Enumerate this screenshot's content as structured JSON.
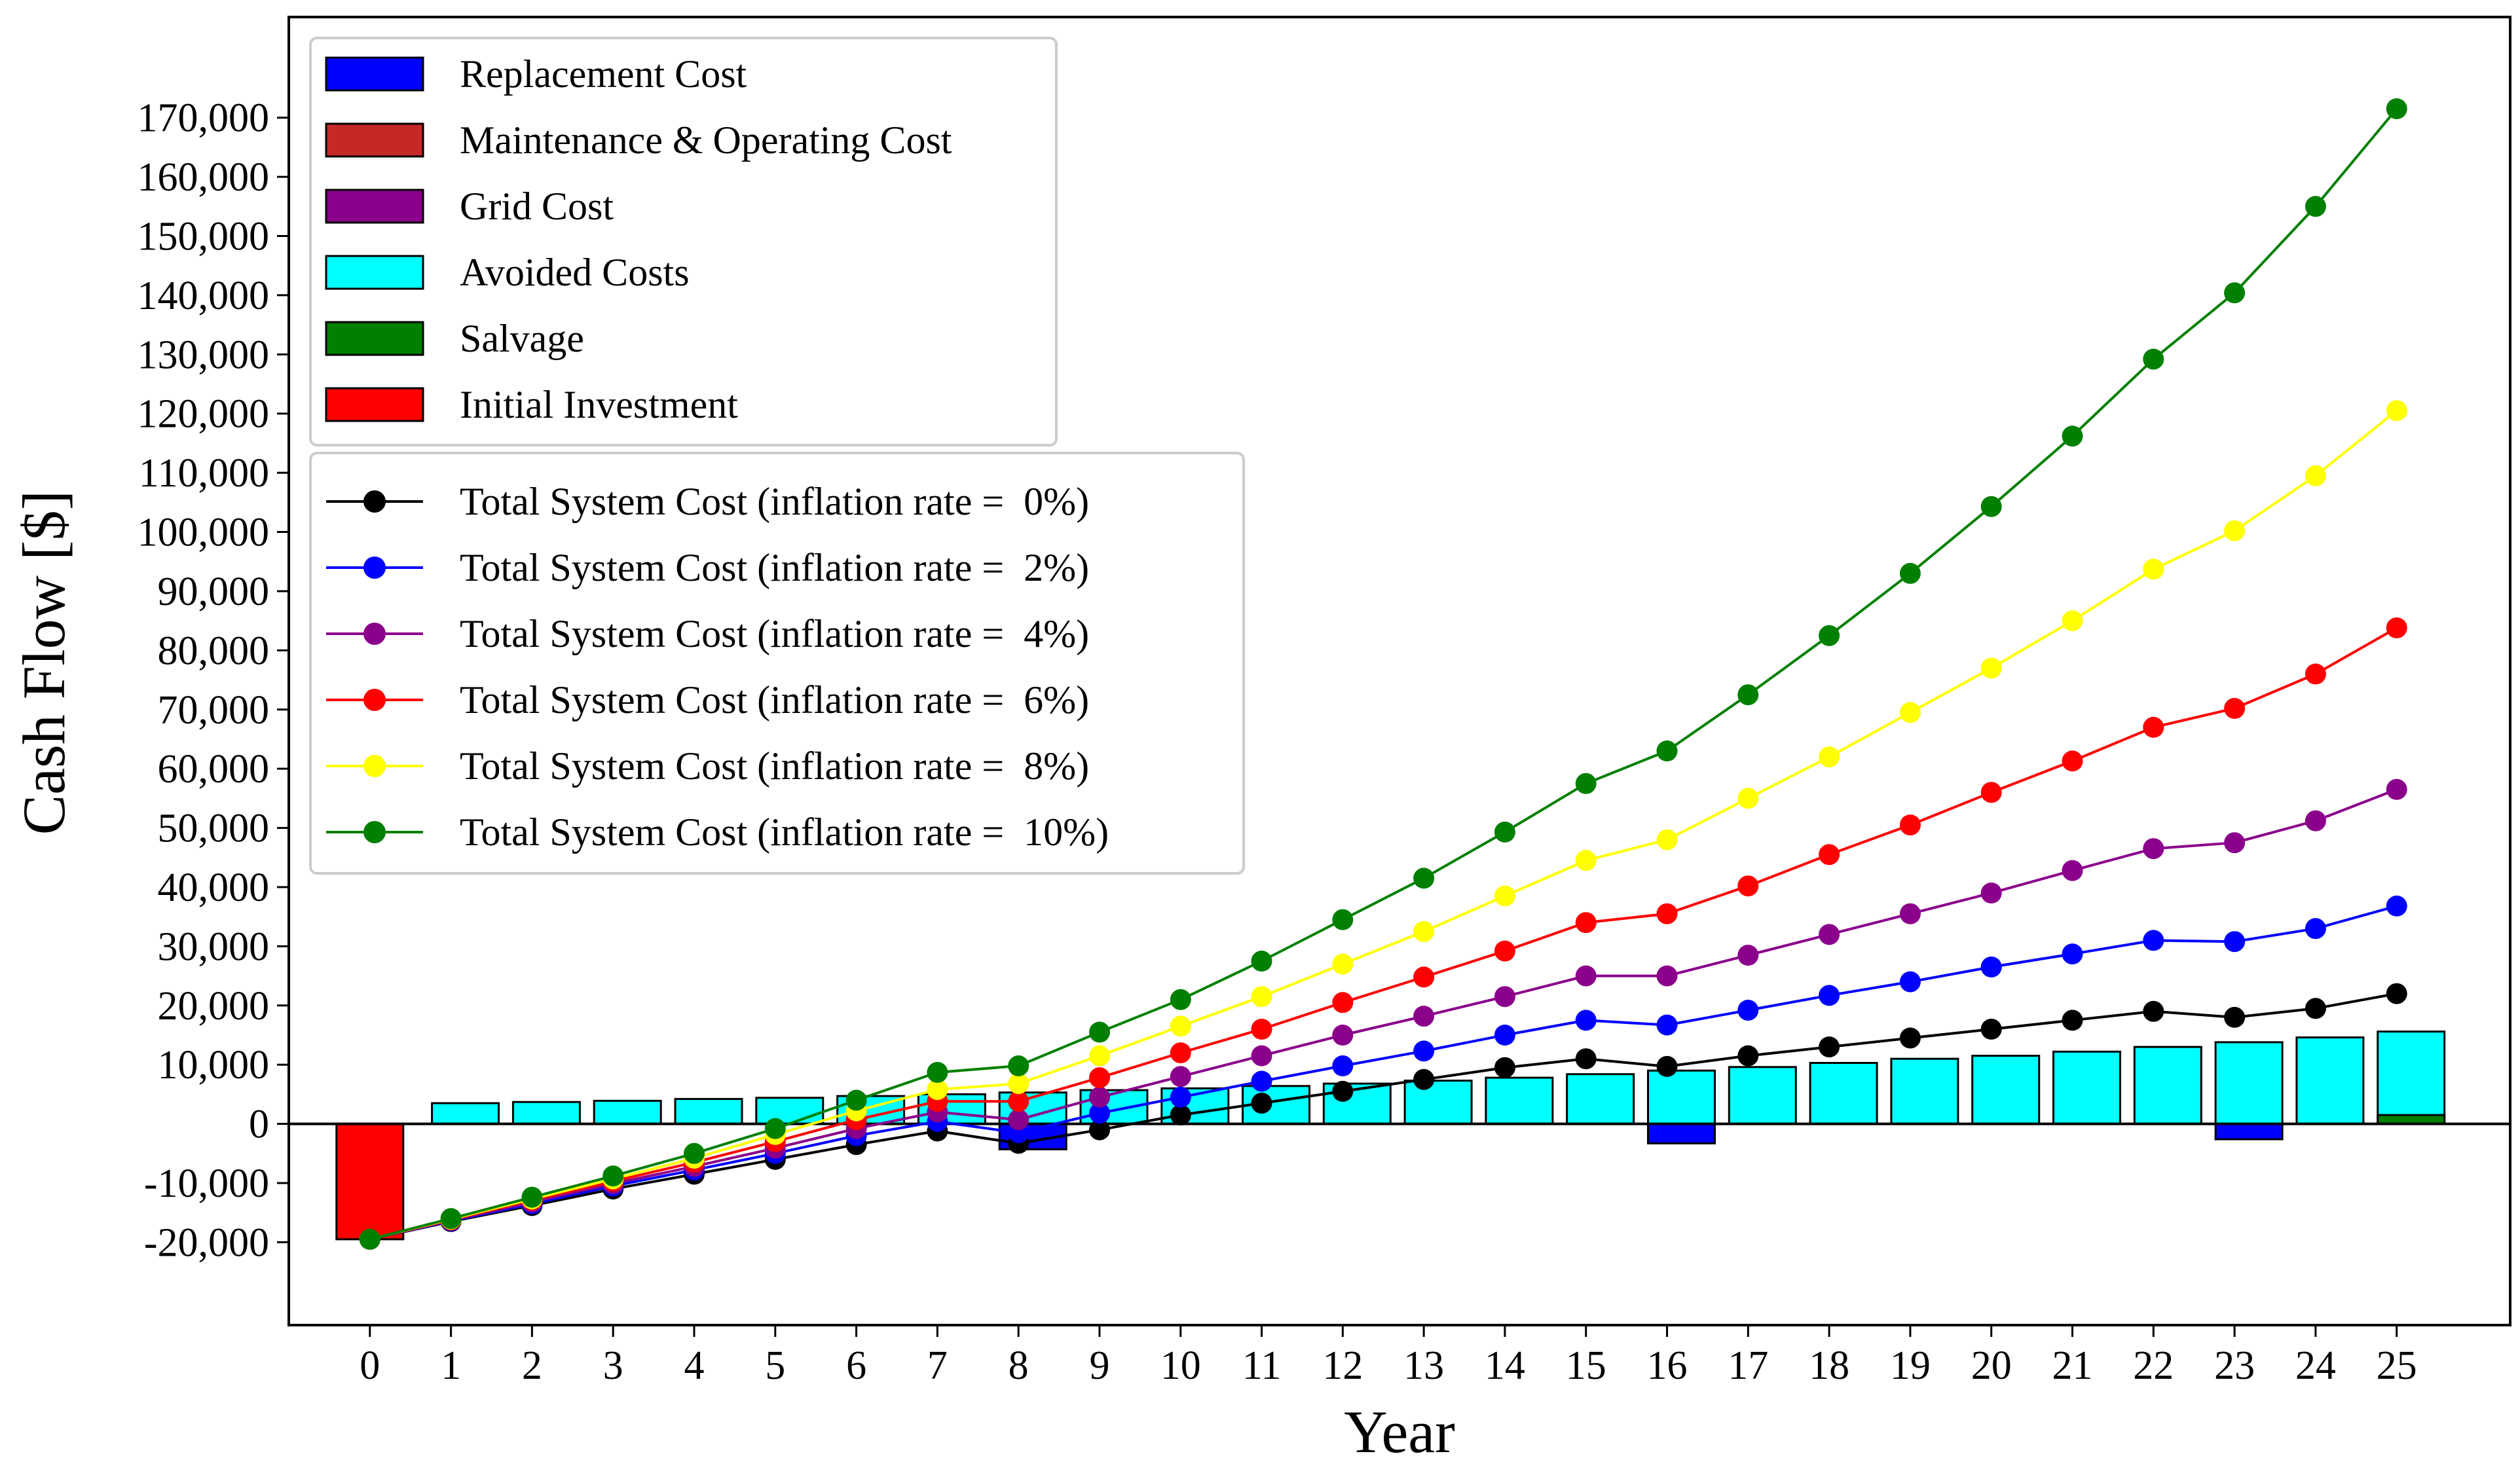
{
  "chart_data": {
    "type": "bar+line",
    "title": "",
    "xlabel": "Year",
    "ylabel": "Cash Flow [$]",
    "xlim": [
      -1,
      26.4
    ],
    "ylim": [
      -34000,
      187000
    ],
    "x": [
      0,
      1,
      2,
      3,
      4,
      5,
      6,
      7,
      8,
      9,
      10,
      11,
      12,
      13,
      14,
      15,
      16,
      17,
      18,
      19,
      20,
      21,
      22,
      23,
      24,
      25
    ],
    "x_tick_labels": [
      "0",
      "1",
      "2",
      "3",
      "4",
      "5",
      "6",
      "7",
      "8",
      "9",
      "10",
      "11",
      "12",
      "13",
      "14",
      "15",
      "16",
      "17",
      "18",
      "19",
      "20",
      "21",
      "22",
      "23",
      "24",
      "25"
    ],
    "y_ticks": [
      -20000,
      -10000,
      0,
      10000,
      20000,
      30000,
      40000,
      50000,
      60000,
      70000,
      80000,
      90000,
      100000,
      110000,
      120000,
      130000,
      140000,
      150000,
      160000,
      170000
    ],
    "y_tick_labels": [
      "-20,000",
      "-10,000",
      "0",
      "10,000",
      "20,000",
      "30,000",
      "40,000",
      "50,000",
      "60,000",
      "70,000",
      "80,000",
      "90,000",
      "100,000",
      "110,000",
      "120,000",
      "130,000",
      "140,000",
      "150,000",
      "160,000",
      "170,000"
    ],
    "bar_series": [
      {
        "name": "Replacement Cost",
        "color": "#0000ff",
        "values": [
          0,
          0,
          0,
          0,
          0,
          0,
          0,
          0,
          -4300,
          0,
          0,
          0,
          0,
          0,
          0,
          0,
          -3300,
          0,
          0,
          0,
          0,
          0,
          0,
          -2600,
          0,
          0
        ]
      },
      {
        "name": "Maintenance & Operating Cost",
        "color": "#c62828",
        "values": [
          0,
          0,
          0,
          0,
          0,
          0,
          0,
          0,
          0,
          0,
          0,
          0,
          0,
          0,
          0,
          0,
          0,
          0,
          0,
          0,
          0,
          0,
          0,
          0,
          0,
          0
        ]
      },
      {
        "name": "Grid Cost",
        "color": "#8b008b",
        "values": [
          0,
          0,
          0,
          0,
          0,
          0,
          0,
          0,
          0,
          0,
          0,
          0,
          0,
          0,
          0,
          0,
          0,
          0,
          0,
          0,
          0,
          0,
          0,
          0,
          0,
          0
        ]
      },
      {
        "name": "Avoided Costs",
        "color": "#00ffff",
        "values": [
          0,
          3500,
          3700,
          3900,
          4200,
          4400,
          4700,
          5000,
          5300,
          5700,
          6000,
          6400,
          6800,
          7300,
          7800,
          8400,
          9000,
          9600,
          10300,
          11000,
          11500,
          12200,
          13000,
          13800,
          14600,
          15600
        ]
      },
      {
        "name": "Salvage",
        "color": "#007f00",
        "values": [
          0,
          0,
          0,
          0,
          0,
          0,
          0,
          0,
          0,
          0,
          0,
          0,
          0,
          0,
          0,
          0,
          0,
          0,
          0,
          0,
          0,
          0,
          0,
          0,
          0,
          1500
        ]
      },
      {
        "name": "Initial Investment",
        "color": "#ff0000",
        "values": [
          -19500,
          0,
          0,
          0,
          0,
          0,
          0,
          0,
          0,
          0,
          0,
          0,
          0,
          0,
          0,
          0,
          0,
          0,
          0,
          0,
          0,
          0,
          0,
          0,
          0,
          0
        ]
      }
    ],
    "line_series": [
      {
        "name": "Total System Cost (inflation rate =  0%)",
        "color": "#000000",
        "values": [
          -19500,
          -16500,
          -13800,
          -11000,
          -8500,
          -6000,
          -3500,
          -1200,
          -3300,
          -1000,
          1500,
          3500,
          5500,
          7500,
          9500,
          11000,
          9700,
          11500,
          13000,
          14500,
          16000,
          17500,
          19000,
          18000,
          19500,
          22000
        ]
      },
      {
        "name": "Total System Cost (inflation rate =  2%)",
        "color": "#0000ff",
        "values": [
          -19500,
          -16400,
          -13500,
          -10500,
          -7800,
          -5000,
          -2000,
          400,
          -1500,
          1800,
          4500,
          7200,
          9800,
          12300,
          15000,
          17500,
          16700,
          19200,
          21700,
          24000,
          26500,
          28700,
          31000,
          30800,
          33000,
          36800
        ]
      },
      {
        "name": "Total System Cost (inflation rate =  4%)",
        "color": "#8b008b",
        "values": [
          -19500,
          -16300,
          -13200,
          -10100,
          -7200,
          -4100,
          -800,
          2000,
          700,
          4500,
          8000,
          11500,
          15000,
          18200,
          21500,
          25000,
          25000,
          28500,
          32000,
          35500,
          39000,
          42800,
          46500,
          47500,
          51200,
          56500
        ]
      },
      {
        "name": "Total System Cost (inflation rate =  6%)",
        "color": "#ff0000",
        "values": [
          -19500,
          -16200,
          -12900,
          -9700,
          -6500,
          -3000,
          700,
          3800,
          3800,
          7800,
          12000,
          16000,
          20500,
          24800,
          29200,
          34000,
          35500,
          40200,
          45500,
          50500,
          56000,
          61300,
          67000,
          70200,
          76000,
          83800
        ]
      },
      {
        "name": "Total System Cost (inflation rate =  8%)",
        "color": "#ffff00",
        "values": [
          -19500,
          -16100,
          -12700,
          -9300,
          -5800,
          -1800,
          2200,
          5800,
          6800,
          11500,
          16500,
          21500,
          27000,
          32500,
          38500,
          44500,
          48000,
          55000,
          62000,
          69500,
          77000,
          85000,
          93700,
          100200,
          109500,
          120500
        ]
      },
      {
        "name": "Total System Cost (inflation rate =  10%)",
        "color": "#008000",
        "values": [
          -19500,
          -16000,
          -12400,
          -8800,
          -5000,
          -800,
          4000,
          8700,
          9800,
          15500,
          21000,
          27500,
          34500,
          41500,
          49300,
          57500,
          63000,
          72500,
          82500,
          93000,
          104300,
          116200,
          129200,
          140400,
          155000,
          171500
        ]
      }
    ]
  }
}
